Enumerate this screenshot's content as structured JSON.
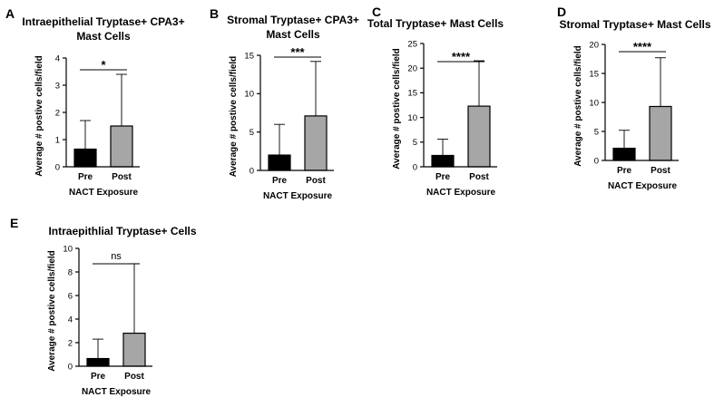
{
  "chart_data": [
    {
      "type": "bar",
      "panel": "A",
      "title": [
        "Intraepithelial Tryptase+ CPA3+",
        "Mast Cells"
      ],
      "xlabel": "NACT Exposure",
      "ylabel": "Average # postive cells/field",
      "categories": [
        "Pre",
        "Post"
      ],
      "values": [
        0.65,
        1.5
      ],
      "error_upper": [
        1.7,
        3.4
      ],
      "bar_colors": [
        "#000000",
        "#a6a6a6"
      ],
      "ylim": [
        0,
        4
      ],
      "yticks": [
        0,
        1,
        2,
        3,
        4
      ],
      "significance": "*"
    },
    {
      "type": "bar",
      "panel": "B",
      "title": [
        "Stromal Tryptase+ CPA3+",
        "Mast Cells"
      ],
      "xlabel": "NACT Exposure",
      "ylabel": "Average # postive cells/field",
      "categories": [
        "Pre",
        "Post"
      ],
      "values": [
        2.0,
        7.1
      ],
      "error_upper": [
        6.0,
        14.2
      ],
      "bar_colors": [
        "#000000",
        "#a6a6a6"
      ],
      "ylim": [
        0,
        15
      ],
      "yticks": [
        0,
        5,
        10,
        15
      ],
      "significance": "***"
    },
    {
      "type": "bar",
      "panel": "C",
      "title": [
        "Total Tryptase+ Mast Cells"
      ],
      "xlabel": "NACT Exposure",
      "ylabel": "Average # postive cells/field",
      "categories": [
        "Pre",
        "Post"
      ],
      "values": [
        2.3,
        12.3
      ],
      "error_upper": [
        5.6,
        21.5
      ],
      "bar_colors": [
        "#000000",
        "#a6a6a6"
      ],
      "ylim": [
        0,
        25
      ],
      "yticks": [
        0,
        5,
        10,
        15,
        20,
        25
      ],
      "significance": "****"
    },
    {
      "type": "bar",
      "panel": "D",
      "title": [
        "Stromal Tryptase+ Mast Cells"
      ],
      "xlabel": "NACT Exposure",
      "ylabel": "Average # postive cells/field",
      "categories": [
        "Pre",
        "Post"
      ],
      "values": [
        2.1,
        9.3
      ],
      "error_upper": [
        5.2,
        17.7
      ],
      "bar_colors": [
        "#000000",
        "#a6a6a6"
      ],
      "ylim": [
        0,
        20
      ],
      "yticks": [
        0,
        5,
        10,
        15,
        20
      ],
      "significance": "****"
    },
    {
      "type": "bar",
      "panel": "E",
      "title": [
        "Intraepithlial Tryptase+ Cells"
      ],
      "xlabel": "NACT Exposure",
      "ylabel": "Average # postive cells/field",
      "categories": [
        "Pre",
        "Post"
      ],
      "values": [
        0.65,
        2.8
      ],
      "error_upper": [
        2.3,
        8.7
      ],
      "bar_colors": [
        "#000000",
        "#a6a6a6"
      ],
      "ylim": [
        0,
        10
      ],
      "yticks": [
        0,
        2,
        4,
        6,
        8,
        10
      ],
      "significance": "ns"
    }
  ]
}
